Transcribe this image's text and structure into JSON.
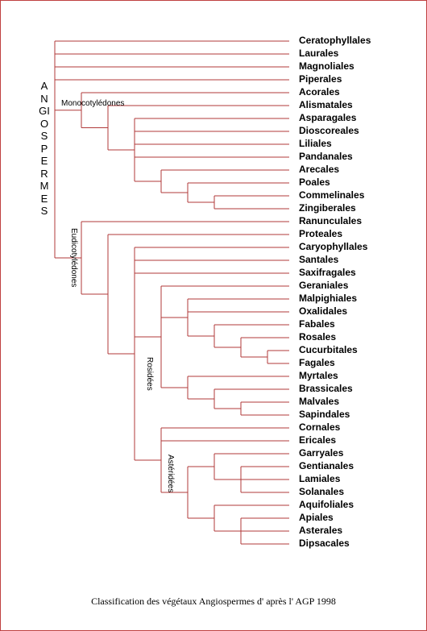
{
  "title": "ANGIOSPERMES",
  "clades": {
    "monocots": "Monocotylédones",
    "eudicots": "Eudicotylédones",
    "rosids": "Rosidées",
    "asterids": "Astéridées"
  },
  "caption": "Classification des végétaux Angiospermes d' après l' AGP 1998",
  "tree": {
    "children": [
      {
        "label": "Ceratophyllales"
      },
      {
        "label": "Laurales"
      },
      {
        "label": "Magnoliales"
      },
      {
        "label": "Piperales"
      },
      {
        "children": [
          {
            "label": "Acorales"
          },
          {
            "children": [
              {
                "label": "Alismatales"
              },
              {
                "children": [
                  {
                    "label": "Asparagales"
                  },
                  {
                    "label": "Dioscoreales"
                  },
                  {
                    "label": "Liliales"
                  },
                  {
                    "label": "Pandanales"
                  },
                  {
                    "children": [
                      {
                        "label": "Arecales"
                      },
                      {
                        "children": [
                          {
                            "label": "Poales"
                          },
                          {
                            "children": [
                              {
                                "label": "Commelinales"
                              },
                              {
                                "label": "Zingiberales"
                              }
                            ]
                          }
                        ]
                      }
                    ]
                  }
                ]
              }
            ]
          }
        ]
      },
      {
        "children": [
          {
            "label": "Ranunculales"
          },
          {
            "children": [
              {
                "label": "Proteales"
              },
              {
                "children": [
                  {
                    "label": "Caryophyllales"
                  },
                  {
                    "label": "Santales"
                  },
                  {
                    "label": "Saxifragales"
                  },
                  {
                    "children": [
                      {
                        "label": "Geraniales"
                      },
                      {
                        "children": [
                          {
                            "label": "Malpighiales"
                          },
                          {
                            "label": "Oxalidales"
                          },
                          {
                            "children": [
                              {
                                "label": "Fabales"
                              },
                              {
                                "children": [
                                  {
                                    "label": "Rosales"
                                  },
                                  {
                                    "children": [
                                      {
                                        "label": "Cucurbitales"
                                      },
                                      {
                                        "label": "Fagales"
                                      }
                                    ]
                                  }
                                ]
                              }
                            ]
                          }
                        ]
                      },
                      {
                        "children": [
                          {
                            "label": "Myrtales"
                          },
                          {
                            "children": [
                              {
                                "label": "Brassicales"
                              },
                              {
                                "children": [
                                  {
                                    "label": "Malvales"
                                  },
                                  {
                                    "label": "Sapindales"
                                  }
                                ]
                              }
                            ]
                          }
                        ]
                      }
                    ]
                  },
                  {
                    "children": [
                      {
                        "label": "Cornales"
                      },
                      {
                        "label": "Ericales"
                      },
                      {
                        "children": [
                          {
                            "children": [
                              {
                                "label": "Garryales"
                              },
                              {
                                "children": [
                                  {
                                    "label": "Gentianales"
                                  },
                                  {
                                    "label": "Lamiales"
                                  },
                                  {
                                    "label": "Solanales"
                                  }
                                ]
                              }
                            ]
                          },
                          {
                            "children": [
                              {
                                "label": "Aquifoliales"
                              },
                              {
                                "children": [
                                  {
                                    "label": "Apiales"
                                  },
                                  {
                                    "label": "Asterales"
                                  },
                                  {
                                    "label": "Dipsacales"
                                  }
                                ]
                              }
                            ]
                          }
                        ]
                      }
                    ]
                  }
                ]
              }
            ]
          }
        ]
      }
    ]
  }
}
